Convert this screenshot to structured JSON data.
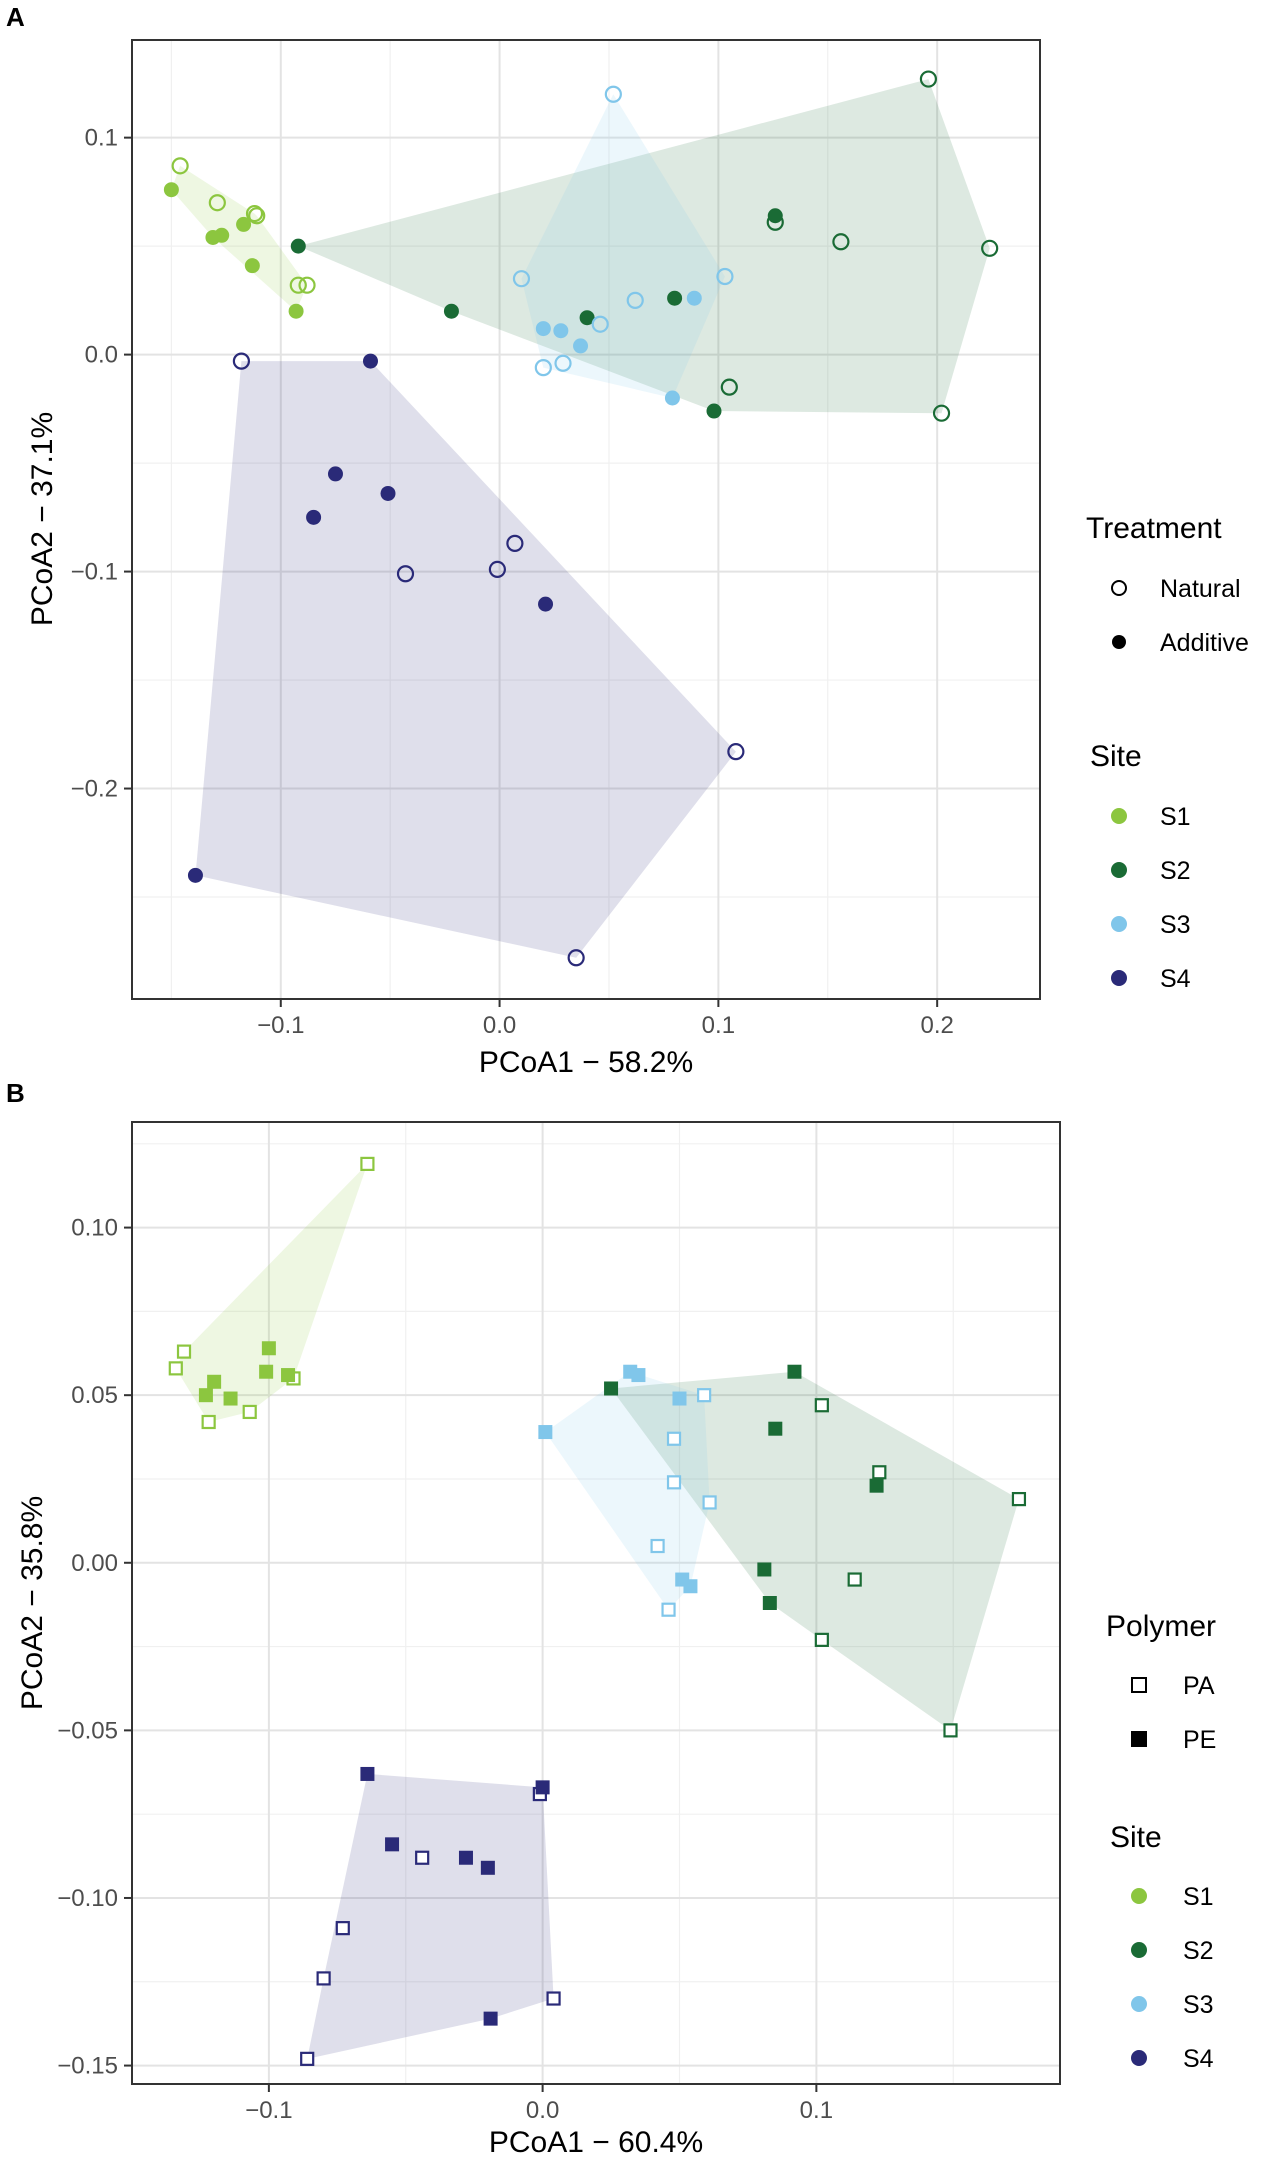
{
  "site_colors": {
    "S1": "#8cc63f",
    "S2": "#1a6b35",
    "S3": "#80c6ea",
    "S4": "#2a2a78"
  },
  "chart_data": [
    {
      "panel": "A",
      "type": "scatter",
      "xlabel": "PCoA1 − 58.2%",
      "ylabel": "PCoA2 − 37.1%",
      "xlim": [
        -0.168,
        0.247
      ],
      "ylim": [
        -0.297,
        0.145
      ],
      "xticks": [
        -0.1,
        0.0,
        0.1,
        0.2
      ],
      "xtick_labels": [
        "−0.1",
        "0.0",
        "0.1",
        "0.2"
      ],
      "yticks": [
        -0.2,
        -0.1,
        0.0,
        0.1
      ],
      "ytick_labels": [
        "−0.2",
        "−0.1",
        "0.0",
        "0.1"
      ],
      "shape_legend_title": "Treatment",
      "shape_levels": [
        "Natural",
        "Additive"
      ],
      "site_legend_title": "Site",
      "sites": [
        "S1",
        "S2",
        "S3",
        "S4"
      ],
      "points": [
        {
          "x": -0.146,
          "y": 0.087,
          "site": "S1",
          "shape": "Natural"
        },
        {
          "x": -0.129,
          "y": 0.07,
          "site": "S1",
          "shape": "Natural"
        },
        {
          "x": -0.112,
          "y": 0.065,
          "site": "S1",
          "shape": "Natural"
        },
        {
          "x": -0.111,
          "y": 0.064,
          "site": "S1",
          "shape": "Natural"
        },
        {
          "x": -0.092,
          "y": 0.032,
          "site": "S1",
          "shape": "Natural"
        },
        {
          "x": -0.088,
          "y": 0.032,
          "site": "S1",
          "shape": "Natural"
        },
        {
          "x": -0.15,
          "y": 0.076,
          "site": "S1",
          "shape": "Additive"
        },
        {
          "x": -0.117,
          "y": 0.06,
          "site": "S1",
          "shape": "Additive"
        },
        {
          "x": -0.127,
          "y": 0.055,
          "site": "S1",
          "shape": "Additive"
        },
        {
          "x": -0.131,
          "y": 0.054,
          "site": "S1",
          "shape": "Additive"
        },
        {
          "x": -0.113,
          "y": 0.041,
          "site": "S1",
          "shape": "Additive"
        },
        {
          "x": -0.093,
          "y": 0.02,
          "site": "S1",
          "shape": "Additive"
        },
        {
          "x": 0.196,
          "y": 0.127,
          "site": "S2",
          "shape": "Natural"
        },
        {
          "x": 0.126,
          "y": 0.061,
          "site": "S2",
          "shape": "Natural"
        },
        {
          "x": 0.156,
          "y": 0.052,
          "site": "S2",
          "shape": "Natural"
        },
        {
          "x": 0.224,
          "y": 0.049,
          "site": "S2",
          "shape": "Natural"
        },
        {
          "x": 0.105,
          "y": -0.015,
          "site": "S2",
          "shape": "Natural"
        },
        {
          "x": 0.202,
          "y": -0.027,
          "site": "S2",
          "shape": "Natural"
        },
        {
          "x": 0.126,
          "y": 0.064,
          "site": "S2",
          "shape": "Additive"
        },
        {
          "x": -0.092,
          "y": 0.05,
          "site": "S2",
          "shape": "Additive"
        },
        {
          "x": -0.022,
          "y": 0.02,
          "site": "S2",
          "shape": "Additive"
        },
        {
          "x": 0.04,
          "y": 0.017,
          "site": "S2",
          "shape": "Additive"
        },
        {
          "x": 0.08,
          "y": 0.026,
          "site": "S2",
          "shape": "Additive"
        },
        {
          "x": 0.098,
          "y": -0.026,
          "site": "S2",
          "shape": "Additive"
        },
        {
          "x": 0.052,
          "y": 0.12,
          "site": "S3",
          "shape": "Natural"
        },
        {
          "x": 0.01,
          "y": 0.035,
          "site": "S3",
          "shape": "Natural"
        },
        {
          "x": 0.103,
          "y": 0.036,
          "site": "S3",
          "shape": "Natural"
        },
        {
          "x": 0.062,
          "y": 0.025,
          "site": "S3",
          "shape": "Natural"
        },
        {
          "x": 0.046,
          "y": 0.014,
          "site": "S3",
          "shape": "Natural"
        },
        {
          "x": 0.02,
          "y": -0.006,
          "site": "S3",
          "shape": "Natural"
        },
        {
          "x": 0.029,
          "y": -0.004,
          "site": "S3",
          "shape": "Natural"
        },
        {
          "x": 0.089,
          "y": 0.026,
          "site": "S3",
          "shape": "Additive"
        },
        {
          "x": 0.02,
          "y": 0.012,
          "site": "S3",
          "shape": "Additive"
        },
        {
          "x": 0.028,
          "y": 0.011,
          "site": "S3",
          "shape": "Additive"
        },
        {
          "x": 0.037,
          "y": 0.004,
          "site": "S3",
          "shape": "Additive"
        },
        {
          "x": 0.079,
          "y": -0.02,
          "site": "S3",
          "shape": "Additive"
        },
        {
          "x": -0.118,
          "y": -0.003,
          "site": "S4",
          "shape": "Natural"
        },
        {
          "x": 0.007,
          "y": -0.087,
          "site": "S4",
          "shape": "Natural"
        },
        {
          "x": -0.001,
          "y": -0.099,
          "site": "S4",
          "shape": "Natural"
        },
        {
          "x": -0.043,
          "y": -0.101,
          "site": "S4",
          "shape": "Natural"
        },
        {
          "x": 0.108,
          "y": -0.183,
          "site": "S4",
          "shape": "Natural"
        },
        {
          "x": 0.035,
          "y": -0.278,
          "site": "S4",
          "shape": "Natural"
        },
        {
          "x": -0.059,
          "y": -0.003,
          "site": "S4",
          "shape": "Additive"
        },
        {
          "x": -0.075,
          "y": -0.055,
          "site": "S4",
          "shape": "Additive"
        },
        {
          "x": -0.051,
          "y": -0.064,
          "site": "S4",
          "shape": "Additive"
        },
        {
          "x": -0.085,
          "y": -0.075,
          "site": "S4",
          "shape": "Additive"
        },
        {
          "x": 0.021,
          "y": -0.115,
          "site": "S4",
          "shape": "Additive"
        },
        {
          "x": -0.139,
          "y": -0.24,
          "site": "S4",
          "shape": "Additive"
        }
      ]
    },
    {
      "panel": "B",
      "type": "scatter",
      "xlabel": "PCoA1 − 60.4%",
      "ylabel": "PCoA2 − 35.8%",
      "xlim": [
        -0.15,
        0.189
      ],
      "ylim": [
        -0.1555,
        0.1315
      ],
      "xticks": [
        -0.1,
        0.0,
        0.1
      ],
      "xtick_labels": [
        "−0.1",
        "0.0",
        "0.1"
      ],
      "yticks": [
        -0.15,
        -0.1,
        -0.05,
        0.0,
        0.05,
        0.1
      ],
      "ytick_labels": [
        "−0.15",
        "−0.10",
        "−0.05",
        "0.00",
        "0.05",
        "0.10"
      ],
      "shape_legend_title": "Polymer",
      "shape_levels": [
        "PA",
        "PE"
      ],
      "site_legend_title": "Site",
      "sites": [
        "S1",
        "S2",
        "S3",
        "S4"
      ],
      "points": [
        {
          "x": -0.064,
          "y": 0.119,
          "site": "S1",
          "shape": "PA"
        },
        {
          "x": -0.131,
          "y": 0.063,
          "site": "S1",
          "shape": "PA"
        },
        {
          "x": -0.134,
          "y": 0.058,
          "site": "S1",
          "shape": "PA"
        },
        {
          "x": -0.122,
          "y": 0.042,
          "site": "S1",
          "shape": "PA"
        },
        {
          "x": -0.107,
          "y": 0.045,
          "site": "S1",
          "shape": "PA"
        },
        {
          "x": -0.091,
          "y": 0.055,
          "site": "S1",
          "shape": "PA"
        },
        {
          "x": -0.1,
          "y": 0.064,
          "site": "S1",
          "shape": "PE"
        },
        {
          "x": -0.12,
          "y": 0.054,
          "site": "S1",
          "shape": "PE"
        },
        {
          "x": -0.123,
          "y": 0.05,
          "site": "S1",
          "shape": "PE"
        },
        {
          "x": -0.114,
          "y": 0.049,
          "site": "S1",
          "shape": "PE"
        },
        {
          "x": -0.101,
          "y": 0.057,
          "site": "S1",
          "shape": "PE"
        },
        {
          "x": -0.093,
          "y": 0.056,
          "site": "S1",
          "shape": "PE"
        },
        {
          "x": 0.102,
          "y": 0.047,
          "site": "S2",
          "shape": "PA"
        },
        {
          "x": 0.123,
          "y": 0.027,
          "site": "S2",
          "shape": "PA"
        },
        {
          "x": 0.174,
          "y": 0.019,
          "site": "S2",
          "shape": "PA"
        },
        {
          "x": 0.114,
          "y": -0.005,
          "site": "S2",
          "shape": "PA"
        },
        {
          "x": 0.102,
          "y": -0.023,
          "site": "S2",
          "shape": "PA"
        },
        {
          "x": 0.149,
          "y": -0.05,
          "site": "S2",
          "shape": "PA"
        },
        {
          "x": 0.025,
          "y": 0.052,
          "site": "S2",
          "shape": "PE"
        },
        {
          "x": 0.092,
          "y": 0.057,
          "site": "S2",
          "shape": "PE"
        },
        {
          "x": 0.085,
          "y": 0.04,
          "site": "S2",
          "shape": "PE"
        },
        {
          "x": 0.122,
          "y": 0.023,
          "site": "S2",
          "shape": "PE"
        },
        {
          "x": 0.081,
          "y": -0.002,
          "site": "S2",
          "shape": "PE"
        },
        {
          "x": 0.083,
          "y": -0.012,
          "site": "S2",
          "shape": "PE"
        },
        {
          "x": 0.059,
          "y": 0.05,
          "site": "S3",
          "shape": "PA"
        },
        {
          "x": 0.048,
          "y": 0.037,
          "site": "S3",
          "shape": "PA"
        },
        {
          "x": 0.048,
          "y": 0.024,
          "site": "S3",
          "shape": "PA"
        },
        {
          "x": 0.061,
          "y": 0.018,
          "site": "S3",
          "shape": "PA"
        },
        {
          "x": 0.042,
          "y": 0.005,
          "site": "S3",
          "shape": "PA"
        },
        {
          "x": 0.046,
          "y": -0.014,
          "site": "S3",
          "shape": "PA"
        },
        {
          "x": 0.032,
          "y": 0.057,
          "site": "S3",
          "shape": "PE"
        },
        {
          "x": 0.035,
          "y": 0.056,
          "site": "S3",
          "shape": "PE"
        },
        {
          "x": 0.05,
          "y": 0.049,
          "site": "S3",
          "shape": "PE"
        },
        {
          "x": 0.001,
          "y": 0.039,
          "site": "S3",
          "shape": "PE"
        },
        {
          "x": 0.051,
          "y": -0.005,
          "site": "S3",
          "shape": "PE"
        },
        {
          "x": 0.054,
          "y": -0.007,
          "site": "S3",
          "shape": "PE"
        },
        {
          "x": -0.001,
          "y": -0.069,
          "site": "S4",
          "shape": "PA"
        },
        {
          "x": -0.044,
          "y": -0.088,
          "site": "S4",
          "shape": "PA"
        },
        {
          "x": -0.073,
          "y": -0.109,
          "site": "S4",
          "shape": "PA"
        },
        {
          "x": -0.08,
          "y": -0.124,
          "site": "S4",
          "shape": "PA"
        },
        {
          "x": 0.004,
          "y": -0.13,
          "site": "S4",
          "shape": "PA"
        },
        {
          "x": -0.086,
          "y": -0.148,
          "site": "S4",
          "shape": "PA"
        },
        {
          "x": -0.064,
          "y": -0.063,
          "site": "S4",
          "shape": "PE"
        },
        {
          "x": -0.055,
          "y": -0.084,
          "site": "S4",
          "shape": "PE"
        },
        {
          "x": -0.028,
          "y": -0.088,
          "site": "S4",
          "shape": "PE"
        },
        {
          "x": -0.02,
          "y": -0.091,
          "site": "S4",
          "shape": "PE"
        },
        {
          "x": 0.0,
          "y": -0.067,
          "site": "S4",
          "shape": "PE"
        },
        {
          "x": -0.019,
          "y": -0.136,
          "site": "S4",
          "shape": "PE"
        }
      ]
    }
  ]
}
